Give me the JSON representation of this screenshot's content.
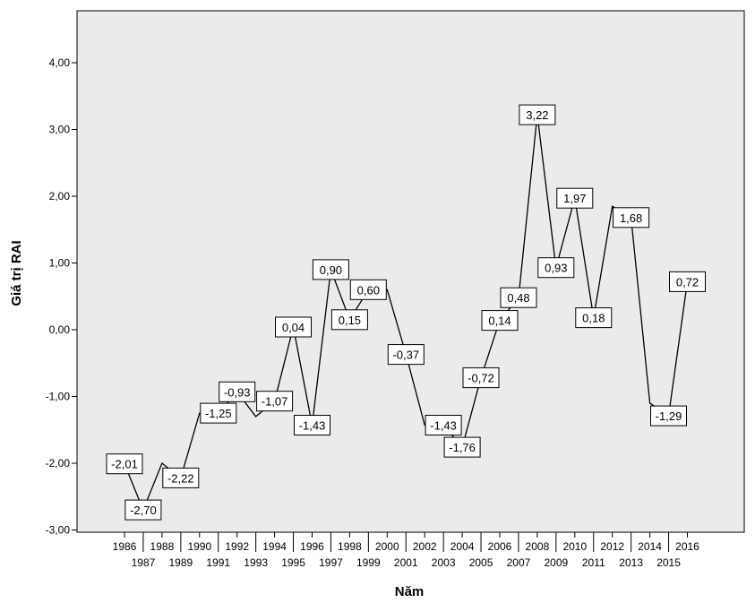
{
  "chart_data": {
    "type": "line",
    "xlabel": "Năm",
    "ylabel": "Giá trị RAI",
    "ylim": [
      -3,
      4.8
    ],
    "yticks": [
      "4,00",
      "3,00",
      "2,00",
      "1,00",
      "0,00",
      "-1,00",
      "-2,00",
      "-3,00"
    ],
    "ytick_values": [
      4,
      3,
      2,
      1,
      0,
      -1,
      -2,
      -3
    ],
    "grid": false,
    "background": "#ebebeb",
    "line_color": "#000000",
    "x": [
      "1986",
      "1987",
      "1988",
      "1989",
      "1990",
      "1991",
      "1992",
      "1993",
      "1994",
      "1995",
      "1996",
      "1997",
      "1998",
      "1999",
      "2000",
      "2001",
      "2002",
      "2003",
      "2004",
      "2005",
      "2006",
      "2007",
      "2008",
      "2009",
      "2010",
      "2011",
      "2012",
      "2013",
      "2014",
      "2015",
      "2016"
    ],
    "values": [
      -2.01,
      -2.7,
      -2.0,
      -2.22,
      -1.25,
      -1.25,
      -0.93,
      -1.3,
      -1.07,
      0.04,
      -1.43,
      0.9,
      0.15,
      0.6,
      0.6,
      -0.37,
      -1.43,
      -1.43,
      -1.76,
      -0.72,
      0.14,
      0.48,
      3.22,
      0.93,
      1.97,
      0.18,
      1.85,
      1.68,
      -1.1,
      -1.29,
      0.72
    ],
    "data_labels": [
      {
        "index": 0,
        "text": "-2,01"
      },
      {
        "index": 1,
        "text": "-2,70"
      },
      {
        "index": 3,
        "text": "-2,22"
      },
      {
        "index": 5,
        "text": "-1,25"
      },
      {
        "index": 6,
        "text": "-0,93"
      },
      {
        "index": 8,
        "text": "-1,07"
      },
      {
        "index": 9,
        "text": "0,04"
      },
      {
        "index": 10,
        "text": "-1,43"
      },
      {
        "index": 11,
        "text": "0,90"
      },
      {
        "index": 12,
        "text": "0,15"
      },
      {
        "index": 13,
        "text": "0,60"
      },
      {
        "index": 15,
        "text": "-0,37"
      },
      {
        "index": 17,
        "text": "-1,43"
      },
      {
        "index": 18,
        "text": "-1,76"
      },
      {
        "index": 19,
        "text": "-0,72"
      },
      {
        "index": 20,
        "text": "0,14"
      },
      {
        "index": 21,
        "text": "0,48"
      },
      {
        "index": 22,
        "text": "3,22"
      },
      {
        "index": 23,
        "text": "0,93"
      },
      {
        "index": 24,
        "text": "1,97"
      },
      {
        "index": 25,
        "text": "0,18"
      },
      {
        "index": 27,
        "text": "1,68"
      },
      {
        "index": 29,
        "text": "-1,29"
      },
      {
        "index": 30,
        "text": "0,72"
      }
    ]
  }
}
